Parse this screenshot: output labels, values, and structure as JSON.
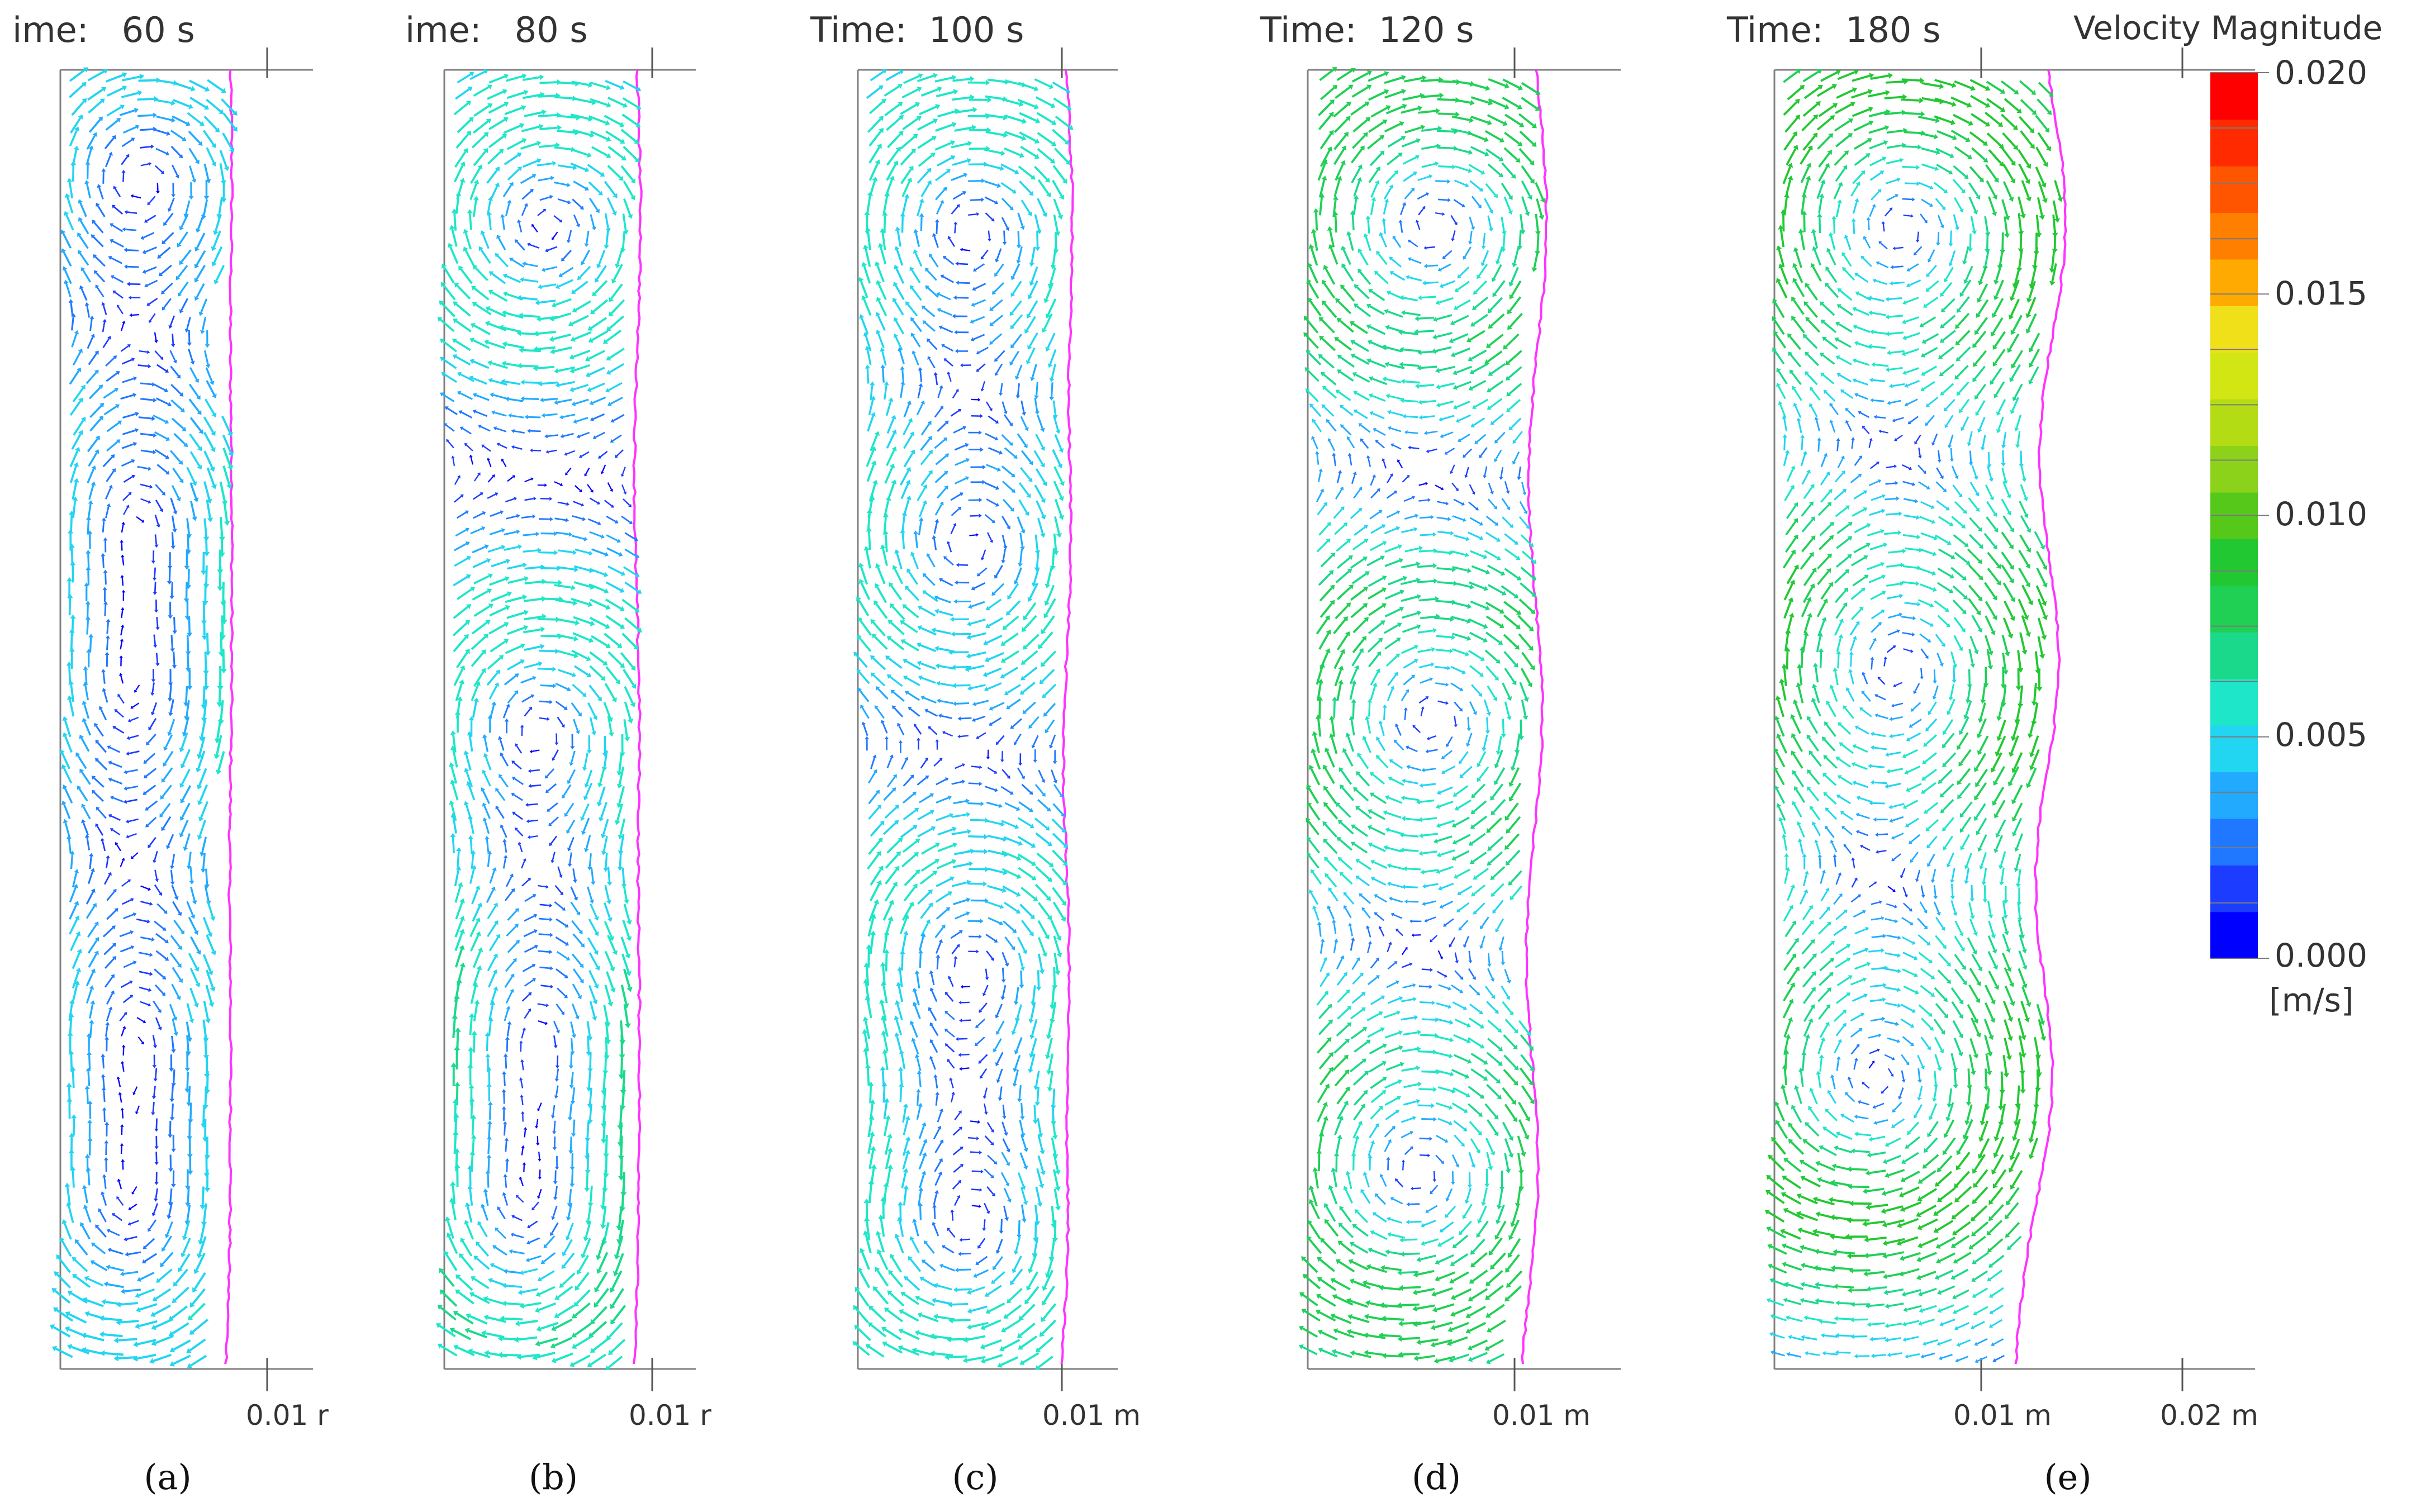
{
  "colorbar": {
    "title": "Velocity Magnitude",
    "unit": "[m/s]",
    "ticks": [
      "0.020",
      "0.015",
      "0.010",
      "0.005",
      "0.000"
    ],
    "range": [
      0.0,
      0.02
    ],
    "colors": [
      "#0000ff",
      "#1c3cff",
      "#1f78ff",
      "#22aaff",
      "#22d5f0",
      "#1ee6c8",
      "#1bd98a",
      "#1fd055",
      "#22c832",
      "#55c81a",
      "#8cd21a",
      "#b4dc14",
      "#d2e614",
      "#f0e01a",
      "#ffaa00",
      "#ff7f00",
      "#ff5500",
      "#ff2a00",
      "#ff0000"
    ]
  },
  "panels": [
    {
      "time_label": "ime:   60 s",
      "label": "(a)",
      "letter": "a",
      "x_ticks": [
        "0.01 r"
      ],
      "interface_shift": 0.0,
      "bulge": 0.0,
      "speed": 0.45
    },
    {
      "time_label": "ime:   80 s",
      "label": "(b)",
      "letter": "b",
      "x_ticks": [
        "0.01 r"
      ],
      "interface_shift": 0.0,
      "bulge": 0.0,
      "speed": 0.55
    },
    {
      "time_label": "Time:  100 s",
      "label": "(c)",
      "letter": "c",
      "x_ticks": [
        "0.01 m"
      ],
      "interface_shift": 0.0,
      "bulge": 0.3,
      "speed": 0.55
    },
    {
      "time_label": "Time:  120 s",
      "label": "(d)",
      "letter": "d",
      "x_ticks": [
        "0.01 m"
      ],
      "interface_shift": 0.0,
      "bulge": 0.6,
      "speed": 0.75
    },
    {
      "time_label": "Time:  180 s",
      "label": "(e)",
      "letter": "e",
      "x_ticks": [
        "0.01 m",
        "0.02 m"
      ],
      "interface_shift": 0.0,
      "bulge": 1.0,
      "speed": 0.8
    }
  ],
  "colors": {
    "interface": "#ff33ff",
    "frame": "#808080"
  }
}
